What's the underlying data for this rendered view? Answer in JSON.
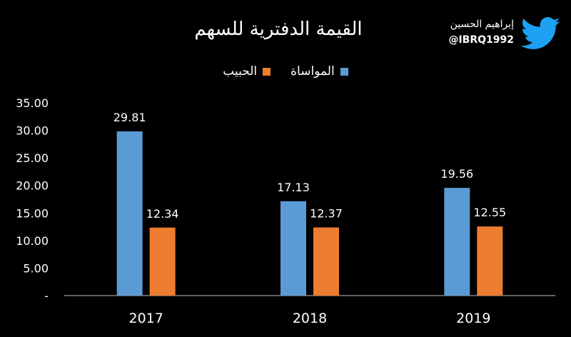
{
  "brand": {
    "name": "إبراهيم الحسين",
    "handle": "@IBRQ1992",
    "icon": "twitter-bird-icon",
    "icon_color": "#1DA1F2"
  },
  "chart_data": {
    "type": "bar",
    "title": "القيمة الدفترية للسهم",
    "categories": [
      "2017",
      "2018",
      "2019"
    ],
    "series": [
      {
        "name": "المواساة",
        "color": "#5B9BD5",
        "values": [
          29.81,
          17.13,
          19.56
        ]
      },
      {
        "name": "الحبيب",
        "color": "#ED7D31",
        "values": [
          12.34,
          12.37,
          12.55
        ]
      }
    ],
    "ylim": [
      0,
      35
    ],
    "yticks": [
      "-",
      "5.00",
      "10.00",
      "15.00",
      "20.00",
      "25.00",
      "30.00",
      "35.00"
    ],
    "legend_position": "top",
    "grid": false
  }
}
